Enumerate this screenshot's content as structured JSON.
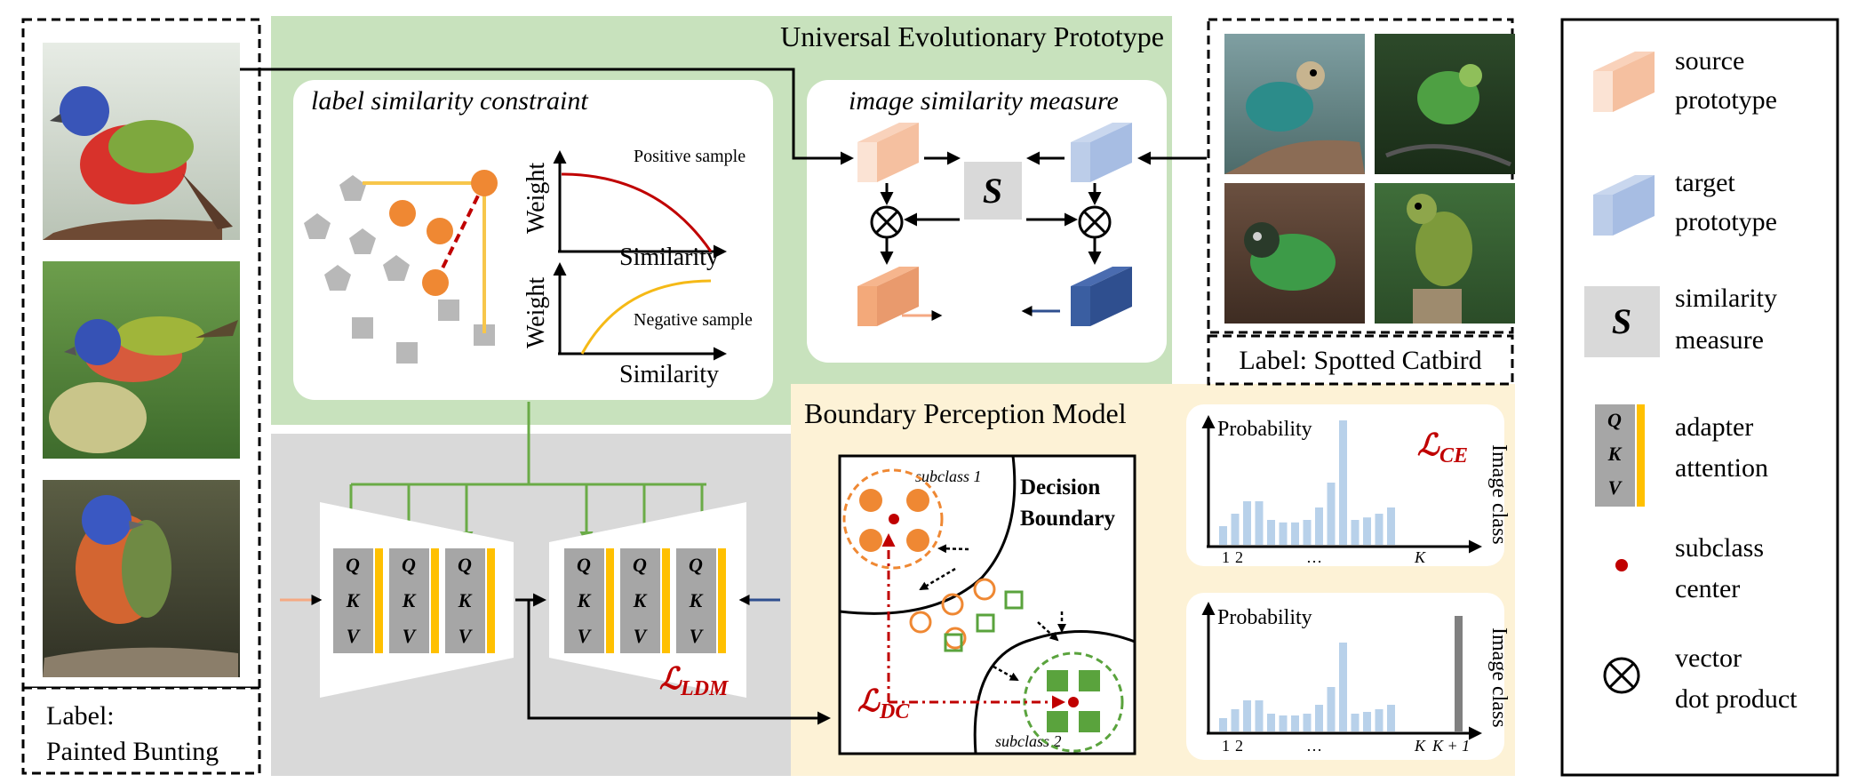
{
  "source_photos": {
    "label_line1": "Label:",
    "label_line2": "Painted Bunting",
    "photo_style": [
      "bunting-perched",
      "bunting-on-grain",
      "bunting-on-branch"
    ]
  },
  "target_photos": {
    "label": "Label: Spotted Catbird",
    "photo_style": [
      "catbird-perched",
      "catbird-leaves",
      "catbird-ground",
      "catbird-stump"
    ]
  },
  "uep": {
    "title": "Universal Evolutionary Prototype",
    "label_panel": {
      "title": "label similarity constraint",
      "positive_label": "Positive sample",
      "negative_label": "Negative sample",
      "y_axis_label": "Weight",
      "x_axis_label": "Similarity"
    },
    "image_panel": {
      "title": "image similarity measure",
      "similarity_symbol": "S",
      "dot_symbol": "⊗"
    }
  },
  "ldm": {
    "qkv": [
      "Q",
      "K",
      "V"
    ],
    "loss_main": "ℒ",
    "loss_sub": "LDM"
  },
  "bpm": {
    "title": "Boundary Perception Model",
    "boundary_line1": "Decision",
    "boundary_line2": "Boundary",
    "subclass1": "subclass 1",
    "subclass2": "subclass 2",
    "loss_main": "ℒ",
    "loss_sub": "DC",
    "ce_main": "ℒ",
    "ce_sub": "CE",
    "prob_label": "Probability",
    "image_class_label": "Image class",
    "tick_1": "1",
    "tick_2": "2",
    "ellipsis": "…",
    "tick_k": "K",
    "tick_k1": "K + 1"
  },
  "chart_top": {
    "values": [
      0.15,
      0.25,
      0.35,
      0.35,
      0.2,
      0.18,
      0.18,
      0.2,
      0.3,
      0.5,
      1.0,
      0.2,
      0.22,
      0.25,
      0.3
    ]
  },
  "chart_bottom": {
    "values": [
      0.15,
      0.25,
      0.35,
      0.35,
      0.2,
      0.18,
      0.18,
      0.2,
      0.3,
      0.5,
      1.0,
      0.2,
      0.22,
      0.25,
      0.3
    ],
    "extra_value": 1.3
  },
  "legend": {
    "items": [
      {
        "line1": "source",
        "line2": "prototype",
        "icon": "source-prototype-icon"
      },
      {
        "line1": "target",
        "line2": "prototype",
        "icon": "target-prototype-icon"
      },
      {
        "line1": "similarity",
        "line2": "measure",
        "icon": "similarity-icon"
      },
      {
        "line1": "adapter",
        "line2": "attention",
        "icon": "adapter-icon"
      },
      {
        "line1": "subclass",
        "line2": "center",
        "icon": "subclass-center-icon"
      },
      {
        "line1": "vector",
        "line2": "dot product",
        "icon": "dot-product-icon"
      }
    ]
  },
  "colors": {
    "green_panel": "#c8e2bd",
    "gray_panel": "#d9d9d9",
    "yellow_panel": "#fdf2d6",
    "orange": "#ef8833",
    "green_dot": "#5aa33d",
    "source_proto": "#f2b48e",
    "target_proto": "#a7bde3",
    "target_proto_dark": "#2f4f8f",
    "bar_blue": "#b8d1ea",
    "bar_gray": "#808080",
    "accent_yellow": "#ffc000",
    "loss_red": "#c00000",
    "arrow_green": "#6aab47"
  }
}
